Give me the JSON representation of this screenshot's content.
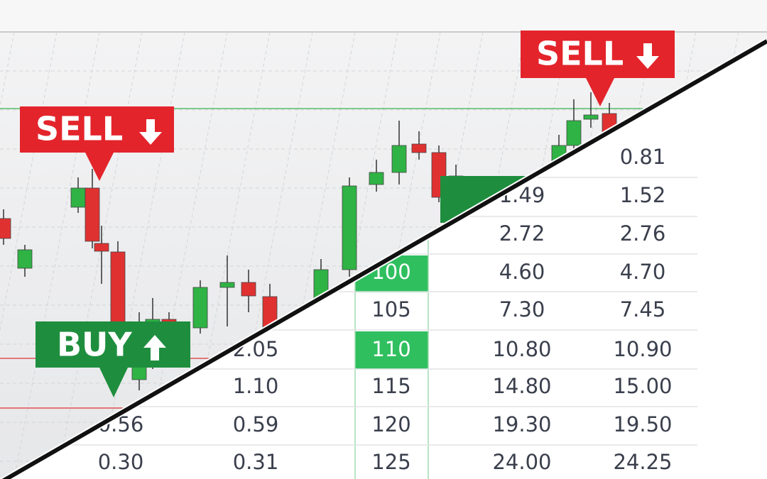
{
  "labels": {
    "sell_left": "SELL",
    "sell_right": "SELL",
    "buy": "BUY"
  },
  "table": {
    "rows": [
      {
        "put_ask": "0.81"
      },
      {
        "put_bid": "1.49",
        "put_ask": "1.52"
      },
      {
        "put_bid": "2.72",
        "put_ask": "2.76"
      },
      {
        "strike": "100",
        "put_bid": "4.60",
        "put_ask": "4.70"
      },
      {
        "strike": "105",
        "put_bid": "7.30",
        "put_ask": "7.45"
      },
      {
        "call_ask": "2.05",
        "strike": "110",
        "put_bid": "10.80",
        "put_ask": "10.90"
      },
      {
        "call_ask": "1.10",
        "strike": "115",
        "put_bid": "14.80",
        "put_ask": "15.00"
      },
      {
        "call_bid": "0.56",
        "call_ask": "0.59",
        "strike": "120",
        "put_bid": "19.30",
        "put_ask": "19.50"
      },
      {
        "call_bid": "0.30",
        "call_ask": "0.31",
        "strike": "125",
        "put_bid": "24.00",
        "put_ask": "24.25"
      }
    ]
  }
}
